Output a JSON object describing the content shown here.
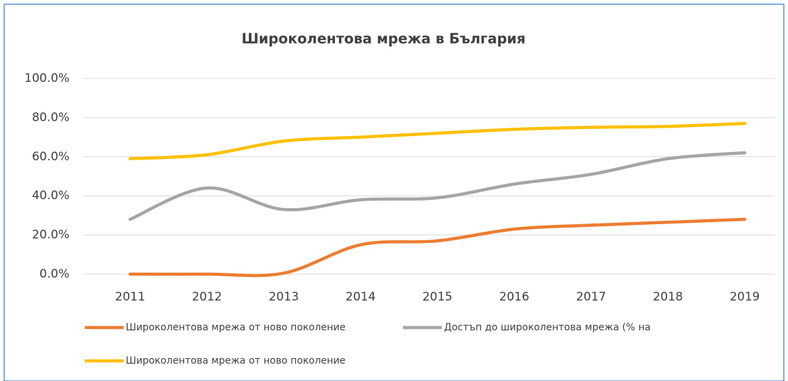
{
  "chart_data": {
    "type": "line",
    "title": "Широколентова мрежа в България",
    "categories": [
      "2011",
      "2012",
      "2013",
      "2014",
      "2015",
      "2016",
      "2017",
      "2018",
      "2019"
    ],
    "series": [
      {
        "name": "Широколентова мрежа от ново поколение",
        "color": "#ed7d31",
        "values": [
          0,
          0,
          0.5,
          15,
          17,
          23,
          25,
          26.5,
          28
        ]
      },
      {
        "name": "Достъп до широколентова мрежа (% на",
        "color": "#a5a5a5",
        "values": [
          28,
          44,
          33,
          38,
          39,
          46,
          51,
          59,
          62
        ]
      },
      {
        "name": "Широколентова мрежа от ново поколение",
        "color": "#ffc000",
        "values": [
          59,
          61,
          68,
          70,
          72,
          74,
          75,
          75.5,
          77
        ]
      }
    ],
    "ylim": [
      0,
      100
    ],
    "yticks": [
      {
        "value": 0,
        "label": "0.0%"
      },
      {
        "value": 20,
        "label": "20.0%"
      },
      {
        "value": 40,
        "label": "40.0%"
      },
      {
        "value": 60,
        "label": "60.0%"
      },
      {
        "value": 80,
        "label": "80.0%"
      },
      {
        "value": 100,
        "label": "100.0%"
      }
    ],
    "grid": true
  }
}
